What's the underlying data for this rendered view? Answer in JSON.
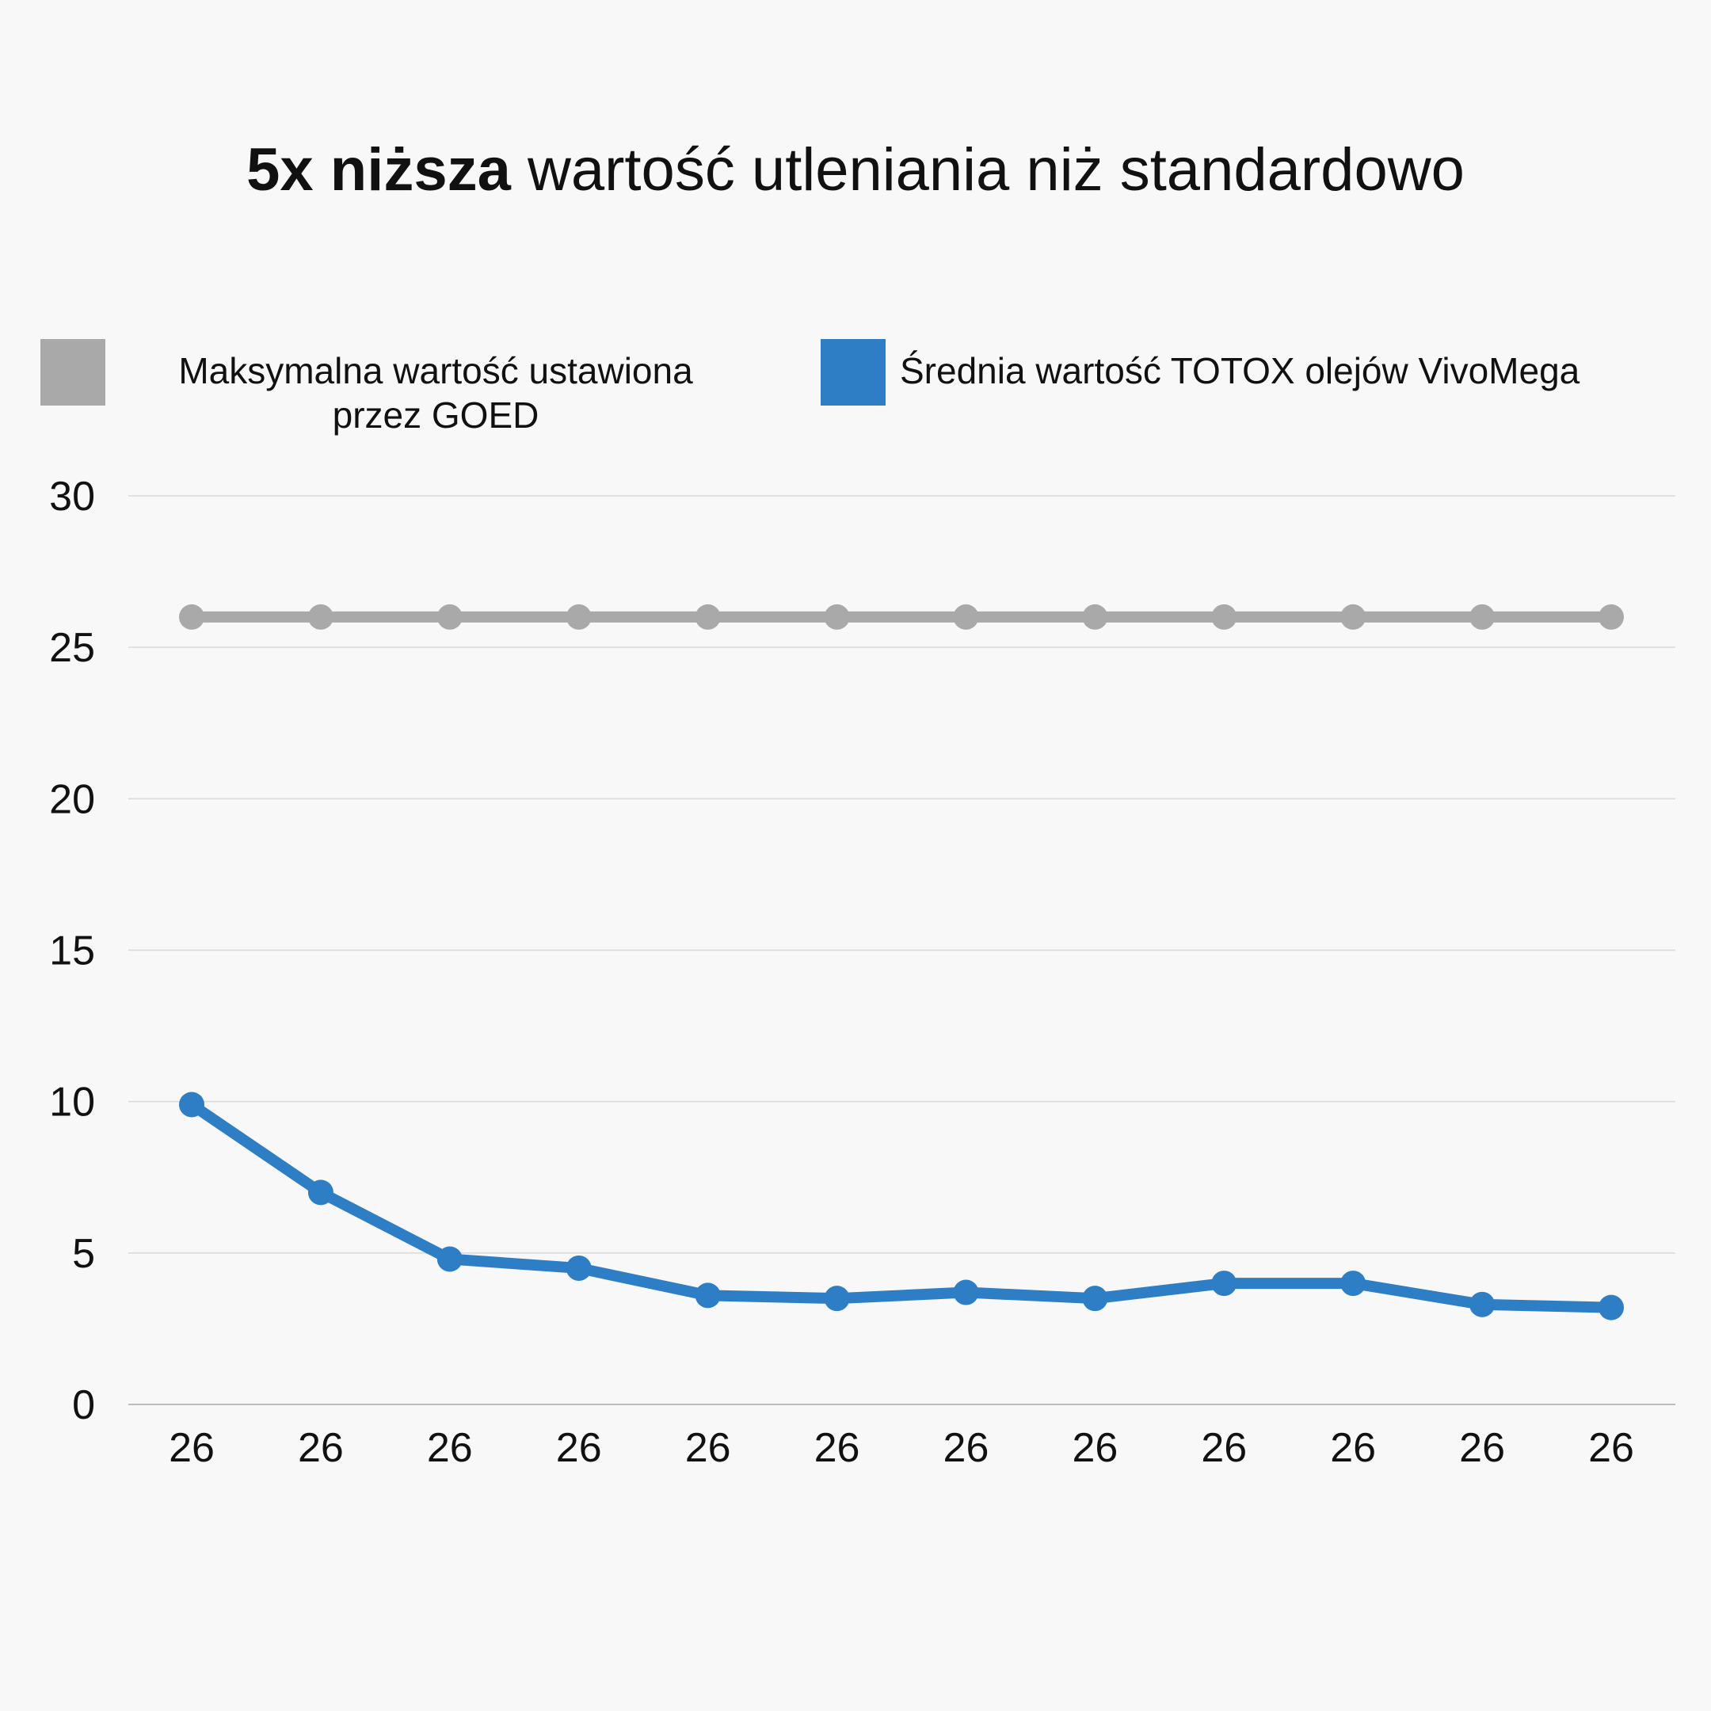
{
  "title": {
    "bold": "5x niższa",
    "rest": " wartość utleniania niż standardowo"
  },
  "legend": [
    {
      "label_line1": "Maksymalna wartość ustawiona",
      "label_line2": "przez GOED",
      "color": "#a9a9a9"
    },
    {
      "label_line1": "Średnia wartość TOTOX olejów VivoMega",
      "label_line2": "",
      "color": "#2e7ec6"
    }
  ],
  "colors": {
    "background": "#f8f8f8",
    "grid": "#d9d9d9",
    "axis": "#bdbdbd",
    "goed": "#a9a9a9",
    "vivomega": "#2e7ec6"
  },
  "chart_data": {
    "type": "line",
    "title": "5x niższa wartość utleniania niż standardowo",
    "xlabel": "",
    "ylabel": "",
    "categories": [
      "26",
      "26",
      "26",
      "26",
      "26",
      "26",
      "26",
      "26",
      "26",
      "26",
      "26",
      "26"
    ],
    "ylim": [
      0,
      30
    ],
    "yticks": [
      0,
      5,
      10,
      15,
      20,
      25,
      30
    ],
    "grid": true,
    "legend_position": "top",
    "series": [
      {
        "name": "Maksymalna wartość ustawiona przez GOED",
        "color": "#a9a9a9",
        "values": [
          26,
          26,
          26,
          26,
          26,
          26,
          26,
          26,
          26,
          26,
          26,
          26
        ]
      },
      {
        "name": "Średnia wartość TOTOX olejów VivoMega",
        "color": "#2e7ec6",
        "values": [
          9.9,
          7.0,
          4.8,
          4.5,
          3.6,
          3.5,
          3.7,
          3.5,
          4.0,
          4.0,
          3.3,
          3.2
        ]
      }
    ]
  }
}
